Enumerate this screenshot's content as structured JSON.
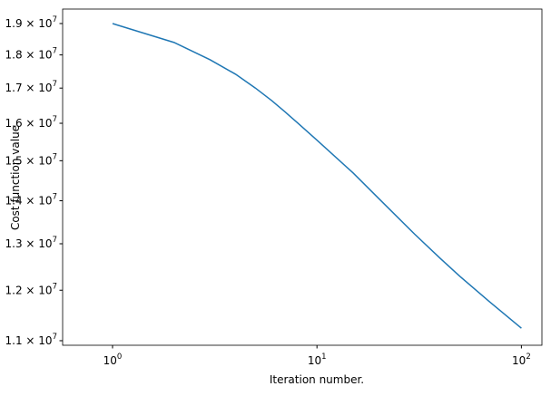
{
  "chart_data": {
    "type": "line",
    "xlabel": "Iteration number.",
    "ylabel": "Cost function value",
    "xscale": "log",
    "yscale": "log",
    "x": [
      1,
      2,
      3,
      4,
      5,
      6,
      7,
      8,
      10,
      15,
      20,
      30,
      40,
      50,
      70,
      100
    ],
    "series": [
      {
        "color": "#1f77b4",
        "values": [
          19000000,
          18390000,
          17850000,
          17410000,
          17000000,
          16640000,
          16310000,
          16020000,
          15540000,
          14690000,
          14060000,
          13220000,
          12680000,
          12290000,
          11760000,
          11240000
        ]
      }
    ],
    "xlim": [
      0.57,
      126
    ],
    "ylim": [
      10914000,
      19480000
    ],
    "xticks": [
      {
        "value": 1,
        "label": "10^0"
      },
      {
        "value": 10,
        "label": "10^1"
      },
      {
        "value": 100,
        "label": "10^2"
      }
    ],
    "yticks": [
      {
        "value": 11000000,
        "label": "1.1 × 10^7"
      },
      {
        "value": 12000000,
        "label": "1.2 × 10^7"
      },
      {
        "value": 13000000,
        "label": "1.3 × 10^7"
      },
      {
        "value": 14000000,
        "label": "1.4 × 10^7"
      },
      {
        "value": 15000000,
        "label": "1.5 × 10^7"
      },
      {
        "value": 16000000,
        "label": "1.6 × 10^7"
      },
      {
        "value": 17000000,
        "label": "1.7 × 10^7"
      },
      {
        "value": 18000000,
        "label": "1.8 × 10^7"
      },
      {
        "value": 19000000,
        "label": "1.9 × 10^7"
      }
    ]
  }
}
